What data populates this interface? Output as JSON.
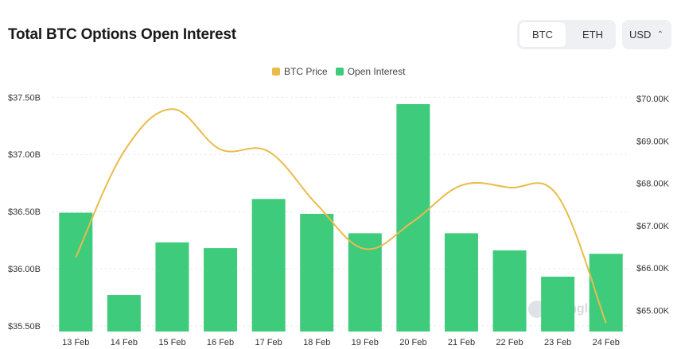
{
  "header": {
    "title": "Total BTC Options Open Interest",
    "asset_tabs": [
      {
        "label": "BTC",
        "active": true
      },
      {
        "label": "ETH",
        "active": false
      }
    ],
    "currency": {
      "selected": "USD"
    }
  },
  "watermark": "coinglass",
  "colors": {
    "bar": "#3ecb7c",
    "line": "#e9bc4a",
    "grid": "#e9ebee"
  },
  "chart_data": {
    "type": "bar",
    "categories": [
      "13 Feb",
      "14 Feb",
      "15 Feb",
      "16 Feb",
      "17 Feb",
      "18 Feb",
      "19 Feb",
      "20 Feb",
      "21 Feb",
      "22 Feb",
      "23 Feb",
      "24 Feb"
    ],
    "legend": {
      "placement": "top-center"
    },
    "grid": true,
    "y_left": {
      "ylim": [
        35.45,
        37.6
      ],
      "ticks": [
        35.5,
        36.0,
        36.5,
        37.0,
        37.5
      ],
      "tick_labels": [
        "$35.50B",
        "$36.00B",
        "$36.50B",
        "$37.00B",
        "$37.50B"
      ]
    },
    "y_right": {
      "ylim": [
        64.5,
        70.3
      ],
      "ticks": [
        65,
        66,
        67,
        68,
        69,
        70
      ],
      "tick_labels": [
        "$65.00K",
        "$66.00K",
        "$67.00K",
        "$68.00K",
        "$69.00K",
        "$70.00K"
      ]
    },
    "series": [
      {
        "name": "Open Interest",
        "type": "bar",
        "axis": "left",
        "color": "#3ecb7c",
        "values": [
          36.49,
          35.77,
          36.23,
          36.18,
          36.61,
          36.48,
          36.31,
          37.44,
          36.31,
          36.16,
          35.93,
          36.13
        ]
      },
      {
        "name": "BTC Price",
        "type": "line",
        "axis": "right",
        "color": "#e9bc4a",
        "values": [
          66.25,
          68.75,
          69.75,
          68.8,
          68.75,
          67.5,
          66.45,
          67.1,
          67.95,
          67.9,
          67.7,
          64.7
        ]
      }
    ]
  }
}
